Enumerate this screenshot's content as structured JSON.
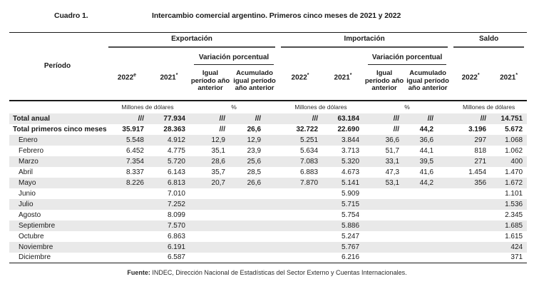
{
  "title": {
    "label": "Cuadro 1.",
    "text": "Intercambio comercial argentino. Primeros cinco meses de 2021 y 2022"
  },
  "table": {
    "period_header": "Período",
    "groups": {
      "exportacion": "Exportación",
      "importacion": "Importación",
      "saldo": "Saldo"
    },
    "subheaders": {
      "variacion": "Variación porcentual",
      "igual": "Igual período año anterior",
      "acumulado": "Acumulado igual período año anterior",
      "y2022": "2022",
      "y2021": "2021",
      "sup_e": "e",
      "sup_star": "*"
    },
    "units": {
      "millones": "Millones de dólares",
      "percent": "%"
    },
    "rows": [
      {
        "label": "Total anual",
        "bold": true,
        "shaded": true,
        "indent": false,
        "cells": [
          "///",
          "77.934",
          "///",
          "///",
          "///",
          "63.184",
          "///",
          "///",
          "///",
          "14.751"
        ]
      },
      {
        "label": "Total primeros cinco meses",
        "bold": true,
        "shaded": false,
        "indent": false,
        "cells": [
          "35.917",
          "28.363",
          "///",
          "26,6",
          "32.722",
          "22.690",
          "///",
          "44,2",
          "3.196",
          "5.672"
        ]
      },
      {
        "label": "Enero",
        "bold": false,
        "shaded": true,
        "indent": true,
        "cells": [
          "5.548",
          "4.912",
          "12,9",
          "12,9",
          "5.251",
          "3.844",
          "36,6",
          "36,6",
          "297",
          "1.068"
        ]
      },
      {
        "label": "Febrero",
        "bold": false,
        "shaded": false,
        "indent": true,
        "cells": [
          "6.452",
          "4.775",
          "35,1",
          "23,9",
          "5.634",
          "3.713",
          "51,7",
          "44,1",
          "818",
          "1.062"
        ]
      },
      {
        "label": "Marzo",
        "bold": false,
        "shaded": true,
        "indent": true,
        "cells": [
          "7.354",
          "5.720",
          "28,6",
          "25,6",
          "7.083",
          "5.320",
          "33,1",
          "39,5",
          "271",
          "400"
        ]
      },
      {
        "label": "Abril",
        "bold": false,
        "shaded": false,
        "indent": true,
        "cells": [
          "8.337",
          "6.143",
          "35,7",
          "28,5",
          "6.883",
          "4.673",
          "47,3",
          "41,6",
          "1.454",
          "1.470"
        ]
      },
      {
        "label": "Mayo",
        "bold": false,
        "shaded": true,
        "indent": true,
        "cells": [
          "8.226",
          "6.813",
          "20,7",
          "26,6",
          "7.870",
          "5.141",
          "53,1",
          "44,2",
          "356",
          "1.672"
        ]
      },
      {
        "label": "Junio",
        "bold": false,
        "shaded": false,
        "indent": true,
        "cells": [
          "",
          "7.010",
          "",
          "",
          "",
          "5.909",
          "",
          "",
          "",
          "1.101"
        ]
      },
      {
        "label": "Julio",
        "bold": false,
        "shaded": true,
        "indent": true,
        "cells": [
          "",
          "7.252",
          "",
          "",
          "",
          "5.715",
          "",
          "",
          "",
          "1.536"
        ]
      },
      {
        "label": "Agosto",
        "bold": false,
        "shaded": false,
        "indent": true,
        "cells": [
          "",
          "8.099",
          "",
          "",
          "",
          "5.754",
          "",
          "",
          "",
          "2.345"
        ]
      },
      {
        "label": "Septiembre",
        "bold": false,
        "shaded": true,
        "indent": true,
        "cells": [
          "",
          "7.570",
          "",
          "",
          "",
          "5.886",
          "",
          "",
          "",
          "1.685"
        ]
      },
      {
        "label": "Octubre",
        "bold": false,
        "shaded": false,
        "indent": true,
        "cells": [
          "",
          "6.863",
          "",
          "",
          "",
          "5.247",
          "",
          "",
          "",
          "1.615"
        ]
      },
      {
        "label": "Noviembre",
        "bold": false,
        "shaded": true,
        "indent": true,
        "cells": [
          "",
          "6.191",
          "",
          "",
          "",
          "5.767",
          "",
          "",
          "",
          "424"
        ]
      },
      {
        "label": "Diciembre",
        "bold": false,
        "shaded": false,
        "indent": true,
        "cells": [
          "",
          "6.587",
          "",
          "",
          "",
          "6.216",
          "",
          "",
          "",
          "371"
        ]
      }
    ]
  },
  "footer": {
    "label": "Fuente:",
    "text": " INDEC, Dirección Nacional de Estadísticas del Sector Externo y Cuentas Internacionales."
  }
}
